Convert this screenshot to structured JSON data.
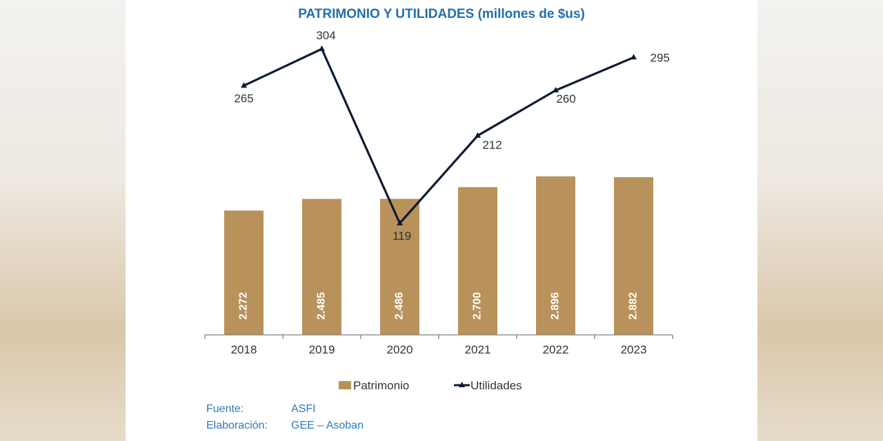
{
  "chart_data": {
    "type": "bar+line",
    "title": "PATRIMONIO Y UTILIDADES (millones de $us)",
    "categories": [
      "2018",
      "2019",
      "2020",
      "2021",
      "2022",
      "2023"
    ],
    "series": [
      {
        "name": "Patrimonio",
        "kind": "bar",
        "color": "#b8925a",
        "values": [
          2272,
          2485,
          2486,
          2700,
          2896,
          2882
        ],
        "labels": [
          "2.272",
          "2.485",
          "2.486",
          "2.700",
          "2.896",
          "2.882"
        ]
      },
      {
        "name": "Utilidades",
        "kind": "line",
        "color": "#0d1b33",
        "values": [
          265,
          304,
          119,
          212,
          260,
          295
        ],
        "labels": [
          "265",
          "304",
          "119",
          "212",
          "260",
          "295"
        ]
      }
    ],
    "legend_position": "bottom"
  },
  "source": {
    "fuente_label": "Fuente:",
    "fuente_value": "ASFI",
    "elaboracion_label": "Elaboración:",
    "elaboracion_value": "GEE – Asoban"
  }
}
